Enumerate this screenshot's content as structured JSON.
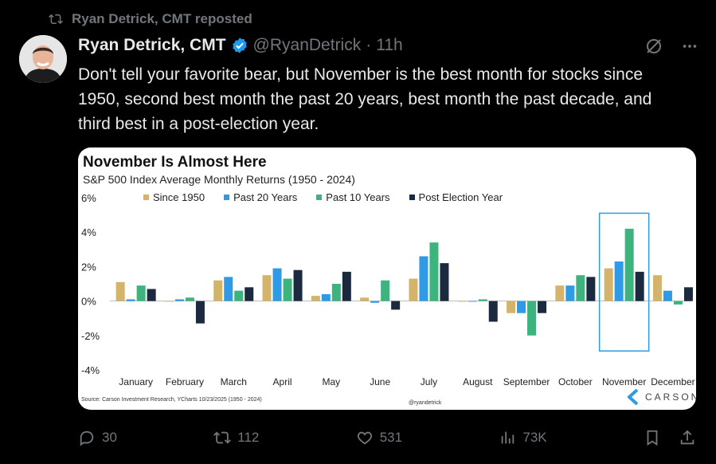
{
  "repost": {
    "text": "Ryan Detrick, CMT reposted"
  },
  "author": {
    "name": "Ryan Detrick, CMT",
    "handle": "@RyanDetrick",
    "time": "11h"
  },
  "tweet": {
    "text": "Don't tell your favorite bear, but November is the best month for stocks since 1950, second best month the past 20 years, best month the past decade, and third best in a post-election year."
  },
  "card": {
    "title": "November Is Almost Here",
    "subtitle": "S&P 500 Index Average Monthly Returns (1950 - 2024)",
    "source": "Source: Carson Investment Research, YCharts 10/23/2025 (1950 - 2024)",
    "watermark": "@ryandetrick",
    "brand": "CARSON"
  },
  "actions": {
    "replies": "30",
    "reposts": "112",
    "likes": "531",
    "views": "73K"
  },
  "chart_data": {
    "type": "bar",
    "categories": [
      "January",
      "February",
      "March",
      "April",
      "May",
      "June",
      "July",
      "August",
      "September",
      "October",
      "November",
      "December"
    ],
    "series": [
      {
        "name": "Since 1950",
        "color": "#d4b46b",
        "values": [
          1.1,
          0.0,
          1.2,
          1.5,
          0.3,
          0.2,
          1.3,
          0.0,
          -0.7,
          0.9,
          1.9,
          1.5
        ]
      },
      {
        "name": "Past 20 Years",
        "color": "#2f9be6",
        "values": [
          0.1,
          0.1,
          1.4,
          1.9,
          0.4,
          -0.1,
          2.6,
          0.0,
          -0.7,
          0.9,
          2.3,
          0.6
        ]
      },
      {
        "name": "Past 10 Years",
        "color": "#3db37d",
        "values": [
          0.9,
          0.2,
          0.6,
          1.3,
          1.0,
          1.2,
          3.4,
          0.1,
          -2.0,
          1.5,
          4.2,
          -0.2
        ]
      },
      {
        "name": "Post Election Year",
        "color": "#1c2a3f",
        "values": [
          0.7,
          -1.3,
          0.8,
          1.8,
          1.7,
          -0.5,
          2.2,
          -1.2,
          -0.7,
          1.4,
          1.7,
          0.8
        ]
      }
    ],
    "y_ticks": [
      "6%",
      "4%",
      "2%",
      "0%",
      "-2%",
      "-4%"
    ],
    "ylim": [
      -4,
      6
    ],
    "highlight": "November"
  }
}
